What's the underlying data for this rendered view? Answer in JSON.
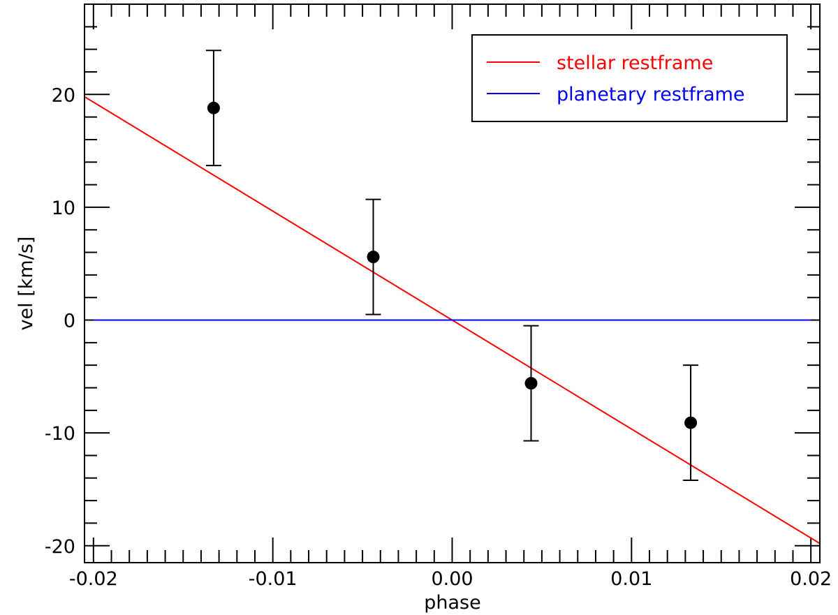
{
  "chart_data": {
    "type": "scatter",
    "title": "",
    "xlabel": "phase",
    "ylabel": "vel [km/s]",
    "xlim": [
      -0.0205,
      0.0205
    ],
    "ylim": [
      -21.5,
      28.0
    ],
    "x_major_ticks": [
      -0.02,
      -0.01,
      0.0,
      0.01,
      0.02
    ],
    "x_tick_labels": [
      "-0.02",
      "-0.01",
      "0.00",
      "0.01",
      "0.02"
    ],
    "y_major_ticks": [
      -20,
      -10,
      0,
      10,
      20
    ],
    "y_tick_labels": [
      "-20",
      "-10",
      "0",
      "10",
      "20"
    ],
    "grid": false,
    "legend_position": "top-right",
    "points": {
      "x": [
        -0.0133,
        -0.0044,
        0.0044,
        0.0133
      ],
      "y": [
        18.8,
        5.6,
        -5.6,
        -9.1
      ],
      "yerr": [
        5.1,
        5.1,
        5.1,
        5.1
      ],
      "color": "#000000"
    },
    "series": [
      {
        "name": "stellar restframe",
        "type": "line",
        "x": [
          -0.0205,
          0.0205
        ],
        "y": [
          19.8,
          -19.8
        ],
        "color": "#ff0000"
      },
      {
        "name": "planetary restframe",
        "type": "line",
        "x": [
          -0.02,
          0.02
        ],
        "y": [
          0,
          0
        ],
        "color": "#0000ff"
      }
    ]
  }
}
